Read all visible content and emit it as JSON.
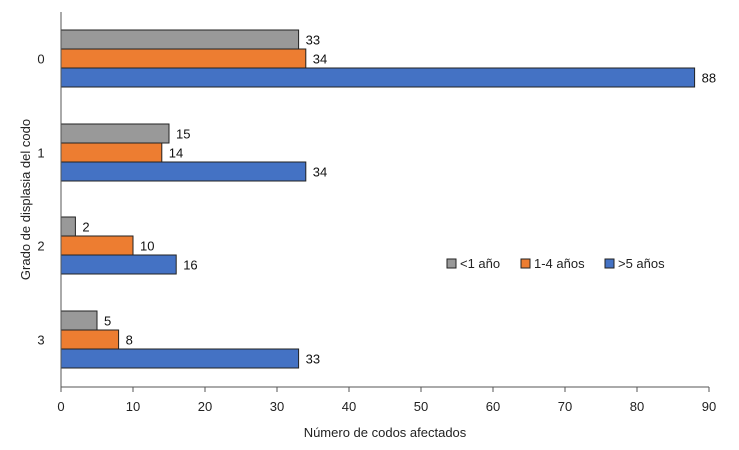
{
  "chart_data": {
    "type": "bar",
    "orientation": "horizontal",
    "categories": [
      "0",
      "1",
      "2",
      "3"
    ],
    "series": [
      {
        "name": "<1 año",
        "values": [
          33,
          15,
          2,
          5
        ],
        "color": "#999999"
      },
      {
        "name": "1-4 años",
        "values": [
          34,
          14,
          10,
          8
        ],
        "color": "#ED7D31"
      },
      {
        "name": ">5 años",
        "values": [
          88,
          34,
          16,
          33
        ],
        "color": "#4472C4"
      }
    ],
    "xlabel": "Número de codos afectados",
    "ylabel": "Grado de displasia del codo",
    "xlim": [
      0,
      90
    ],
    "xticks": [
      "0",
      "10",
      "20",
      "30",
      "40",
      "50",
      "60",
      "70",
      "80",
      "90"
    ],
    "grid": false,
    "legend_position": "right"
  }
}
